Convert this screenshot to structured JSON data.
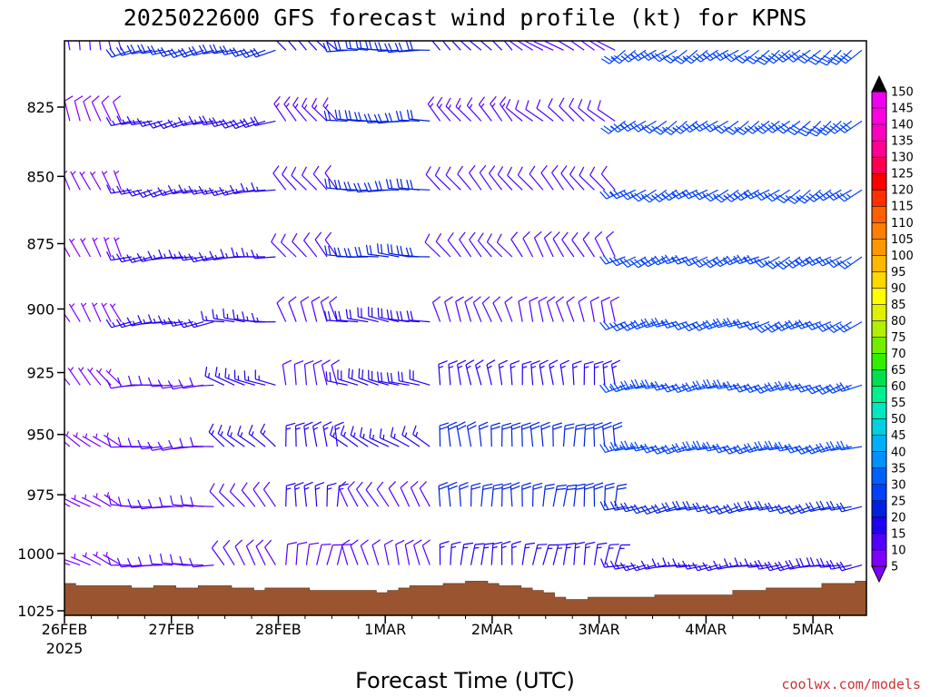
{
  "chart_data": {
    "type": "wind_barb_profile",
    "title": "2025022600 GFS forecast wind profile (kt) for KPNS",
    "xlabel": "Forecast Time (UTC)",
    "credit": "coolwx.com/models",
    "x_ticks": [
      {
        "day": 0,
        "label": "26FEB",
        "sublabel": "2025"
      },
      {
        "day": 1,
        "label": "27FEB"
      },
      {
        "day": 2,
        "label": "28FEB"
      },
      {
        "day": 3,
        "label": "1MAR"
      },
      {
        "day": 4,
        "label": "2MAR"
      },
      {
        "day": 5,
        "label": "3MAR"
      },
      {
        "day": 6,
        "label": "4MAR"
      },
      {
        "day": 7,
        "label": "5MAR"
      }
    ],
    "xlim_days": [
      0,
      7.5
    ],
    "y_ticks": [
      825,
      850,
      875,
      900,
      925,
      950,
      975,
      1000,
      1025
    ],
    "ylim_hpa": [
      800,
      1027
    ],
    "y_scale": "log-pressure",
    "colorbar": {
      "unit": "kt",
      "levels": [
        5,
        10,
        15,
        20,
        25,
        30,
        35,
        40,
        45,
        50,
        55,
        60,
        65,
        70,
        75,
        80,
        85,
        90,
        95,
        100,
        105,
        110,
        115,
        120,
        125,
        130,
        135,
        140,
        145,
        150
      ],
      "colors": [
        "#8000ff",
        "#5000ff",
        "#2000f0",
        "#0020e0",
        "#0040ff",
        "#0060ff",
        "#0090ff",
        "#00b0ff",
        "#00d0e0",
        "#00e8c0",
        "#00f090",
        "#00e050",
        "#30f000",
        "#70f000",
        "#b0f000",
        "#e0f000",
        "#ffff00",
        "#ffd800",
        "#ffb800",
        "#ff9800",
        "#ff8000",
        "#ff6000",
        "#ff3000",
        "#ff0000",
        "#ff0050",
        "#ff0090",
        "#ff00c0",
        "#ff00e0",
        "#f000f0",
        "#c000c0"
      ],
      "extend_low_color": "#8000ff",
      "extend_high_color": "#000000"
    },
    "terrain_color": "#9a5530",
    "surface_pressure_hpa": [
      1013,
      1014,
      1014,
      1014,
      1014,
      1014,
      1015,
      1015,
      1014,
      1014,
      1015,
      1015,
      1014,
      1014,
      1014,
      1015,
      1015,
      1016,
      1015,
      1015,
      1015,
      1015,
      1016,
      1016,
      1016,
      1016,
      1016,
      1016,
      1017,
      1016,
      1015,
      1014,
      1014,
      1014,
      1013,
      1013,
      1012,
      1012,
      1013,
      1014,
      1014,
      1015,
      1016,
      1017,
      1019,
      1020,
      1020,
      1019,
      1019,
      1019,
      1019,
      1019,
      1019,
      1018,
      1018,
      1018,
      1018,
      1018,
      1018,
      1018,
      1016,
      1016,
      1016,
      1015,
      1015,
      1015,
      1015,
      1015,
      1013,
      1013,
      1013,
      1012
    ],
    "wind_profile": {
      "levels_hpa": [
        805,
        830,
        855,
        880,
        905,
        930,
        955,
        980,
        1005
      ],
      "segments": [
        {
          "from_day": 0.0,
          "to_day": 0.6,
          "dir": [
            350,
            340,
            335,
            335,
            330,
            320,
            305,
            300,
            295
          ],
          "spd": [
            10,
            8,
            7,
            7,
            6,
            6,
            6,
            5,
            5
          ]
        },
        {
          "from_day": 0.6,
          "to_day": 1.4,
          "dir": [
            255,
            255,
            255,
            260,
            260,
            265,
            265,
            270,
            270
          ],
          "spd": [
            20,
            15,
            15,
            15,
            15,
            12,
            12,
            10,
            10
          ]
        },
        {
          "from_day": 1.4,
          "to_day": 2.0,
          "dir": [
            255,
            255,
            260,
            265,
            275,
            290,
            310,
            320,
            330
          ],
          "spd": [
            22,
            18,
            17,
            15,
            15,
            15,
            15,
            12,
            10
          ]
        },
        {
          "from_day": 2.0,
          "to_day": 2.6,
          "dir": [
            315,
            320,
            320,
            320,
            340,
            350,
            355,
            0,
            10
          ],
          "spd": [
            15,
            13,
            12,
            10,
            10,
            12,
            15,
            15,
            12
          ]
        },
        {
          "from_day": 2.6,
          "to_day": 3.5,
          "dir": [
            270,
            270,
            270,
            275,
            280,
            285,
            300,
            330,
            345
          ],
          "spd": [
            20,
            20,
            20,
            20,
            18,
            18,
            15,
            12,
            10
          ]
        },
        {
          "from_day": 3.5,
          "to_day": 4.2,
          "dir": [
            315,
            320,
            320,
            320,
            340,
            350,
            355,
            0,
            5
          ],
          "spd": [
            15,
            13,
            12,
            12,
            12,
            15,
            20,
            20,
            15
          ]
        },
        {
          "from_day": 4.2,
          "to_day": 5.2,
          "dir": [
            300,
            310,
            320,
            330,
            345,
            355,
            0,
            5,
            10
          ],
          "spd": [
            12,
            12,
            10,
            10,
            12,
            15,
            20,
            20,
            15
          ]
        },
        {
          "from_day": 5.2,
          "to_day": 6.6,
          "dir": [
            235,
            235,
            240,
            245,
            250,
            255,
            255,
            255,
            260
          ],
          "spd": [
            25,
            25,
            25,
            25,
            25,
            25,
            25,
            20,
            15
          ]
        },
        {
          "from_day": 6.6,
          "to_day": 7.5,
          "dir": [
            230,
            230,
            235,
            240,
            245,
            250,
            255,
            255,
            260
          ],
          "spd": [
            28,
            28,
            27,
            26,
            26,
            26,
            25,
            22,
            18
          ]
        }
      ]
    }
  }
}
